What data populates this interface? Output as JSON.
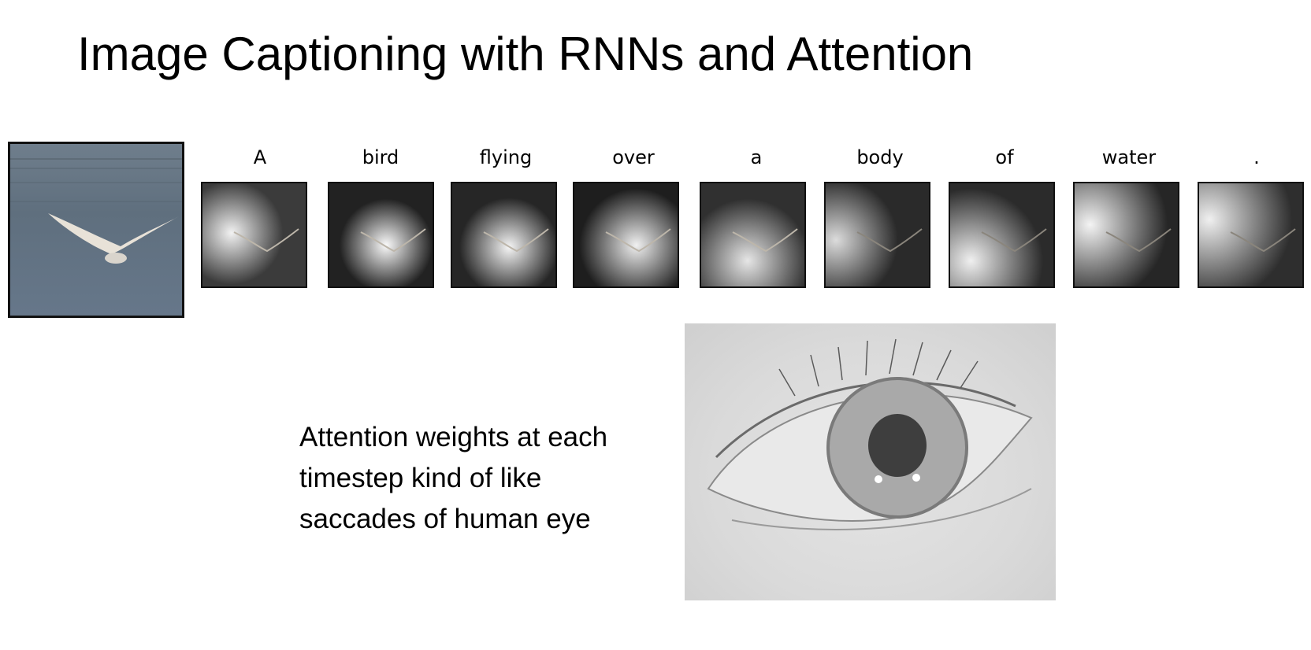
{
  "slide": {
    "title": "Image Captioning with RNNs and Attention",
    "caption_lines": [
      "Attention weights at each",
      "timestep kind of like",
      "saccades of human eye"
    ]
  },
  "images": {
    "source_photo_icon": "bird-flying-over-water-photo",
    "eye_photo_icon": "human-eye-photo"
  },
  "caption_words": [
    "A",
    "bird",
    "flying",
    "over",
    "a",
    "body",
    "of",
    "water",
    "."
  ]
}
